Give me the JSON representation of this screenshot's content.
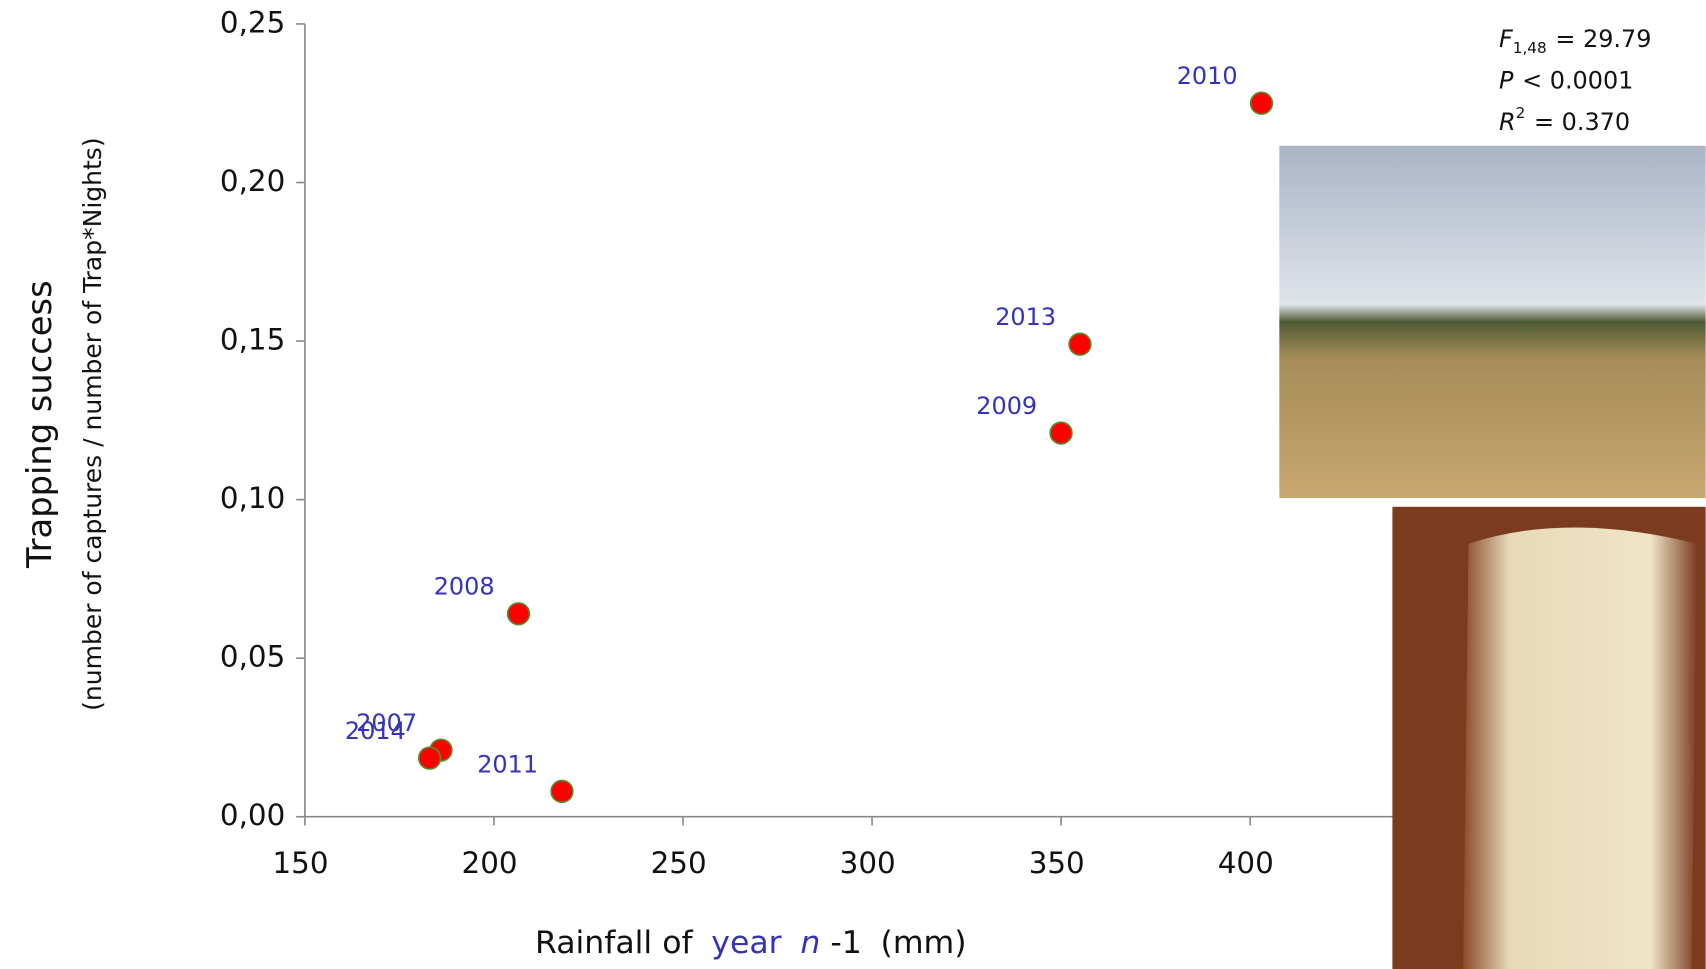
{
  "chart_data": {
    "type": "scatter",
    "y_label": "Trapping success",
    "y_sublabel": "(number of captures / number of Trap*Nights)",
    "x_label_parts": [
      "Rainfall of",
      "year",
      "n",
      "-1",
      "(mm)"
    ],
    "annotations": [
      {
        "var": "F",
        "sub": "1,48",
        "rest": "= 29.79"
      },
      {
        "var": "P",
        "rest": "< 0.0001"
      },
      {
        "var": "R",
        "sup": "2",
        "rest": "= 0.370"
      }
    ],
    "series": [
      {
        "color": "#ff0000",
        "labels": [
          "2010",
          "2013",
          "2009",
          "2008",
          "2007",
          "2014",
          "2011"
        ],
        "x": [
          403,
          355,
          350,
          206.5,
          186,
          183,
          218
        ],
        "values": [
          0.225,
          0.149,
          0.121,
          0.064,
          0.021,
          0.0185,
          0.008
        ]
      }
    ],
    "xlim": [
      150,
      450
    ],
    "xticks": [
      150,
      200,
      250,
      300,
      350,
      400
    ],
    "ylim": [
      0,
      0.25
    ],
    "yticks": [
      {
        "value": 0,
        "label": "0,00"
      },
      {
        "value": 0.05,
        "label": "0,05"
      },
      {
        "value": 0.1,
        "label": "0,10"
      },
      {
        "value": 0.15,
        "label": "0,15"
      },
      {
        "value": 0.2,
        "label": "0,20"
      },
      {
        "value": 0.25,
        "label": "0,25"
      }
    ]
  }
}
